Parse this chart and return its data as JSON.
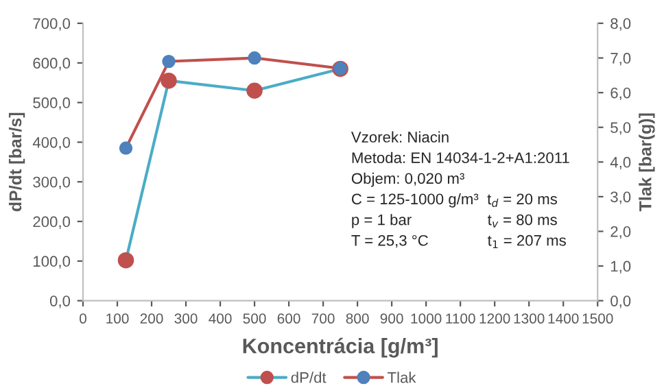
{
  "chart_data": {
    "type": "line",
    "xlabel": "Koncentrácia [g/m³]",
    "ylabel": "dP/dt [bar/s]",
    "y2label": "Tlak [bar(g)]",
    "x": [
      125,
      250,
      500,
      750
    ],
    "series": [
      {
        "name": "dP/dt",
        "color": "#4bacc6",
        "colors": [
          "#c0504d",
          "#c0504d",
          "#c0504d",
          "#c0504d"
        ],
        "values": [
          102,
          555,
          530,
          585
        ]
      },
      {
        "name": "Tlak",
        "color": "#c0504d",
        "colors": [
          "#4f81bd",
          "#4f81bd",
          "#4f81bd",
          "#4f81bd"
        ],
        "values": [
          4.4,
          6.9,
          7.0,
          6.7
        ],
        "axis": "y2"
      }
    ],
    "xlim": [
      0,
      1500
    ],
    "xticks": [
      0,
      100,
      200,
      300,
      400,
      500,
      600,
      700,
      800,
      900,
      1000,
      1100,
      1200,
      1300,
      1400,
      1500
    ],
    "ylim": [
      0,
      700
    ],
    "yticks": [
      {
        "value": 0,
        "label": "0,0"
      },
      {
        "value": 100,
        "label": "100,0"
      },
      {
        "value": 200,
        "label": "200,0"
      },
      {
        "value": 300,
        "label": "300,0"
      },
      {
        "value": 400,
        "label": "400,0"
      },
      {
        "value": 500,
        "label": "500,0"
      },
      {
        "value": 600,
        "label": "600,0"
      },
      {
        "value": 700,
        "label": "700,0"
      }
    ],
    "y2lim": [
      0,
      8
    ],
    "y2ticks": [
      {
        "value": 0,
        "label": "0,0"
      },
      {
        "value": 1,
        "label": "1,0"
      },
      {
        "value": 2,
        "label": "2,0"
      },
      {
        "value": 3,
        "label": "3,0"
      },
      {
        "value": 4,
        "label": "4,0"
      },
      {
        "value": 5,
        "label": "5,0"
      },
      {
        "value": 6,
        "label": "6,0"
      },
      {
        "value": 7,
        "label": "7,0"
      },
      {
        "value": 8,
        "label": "8,0"
      }
    ],
    "marker": "circle",
    "line_style": "solid",
    "grid": false,
    "legend": "bottom",
    "annotations": [
      "Vzorek: Niacin",
      "Metoda: EN 14034-1-2+A1:2011",
      "Objem: 0,020 m³",
      "C = 125-1000 g/m³  t$_{d}$ = 20 ms",
      "p = 1 bar",
      "t$_{v}$ = 80 ms",
      "T = 25,3 °C",
      "t$_{1}$ = 207 ms"
    ]
  }
}
